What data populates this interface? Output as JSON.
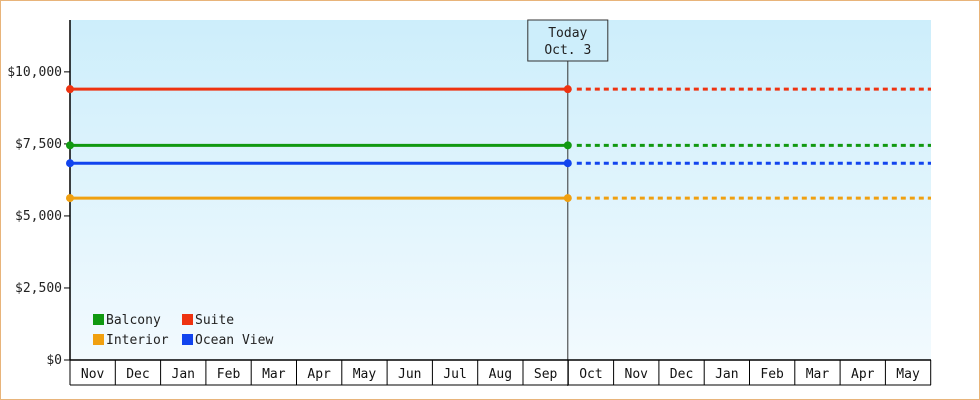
{
  "chart_data": {
    "type": "line",
    "y_ticks": [
      "$0",
      "$2,500",
      "$5,000",
      "$7,500",
      "$10,000"
    ],
    "y_tick_values": [
      0,
      2500,
      5000,
      7500,
      10000
    ],
    "ylim": [
      0,
      11800
    ],
    "months": [
      "Nov",
      "Dec",
      "Jan",
      "Feb",
      "Mar",
      "Apr",
      "May",
      "Jun",
      "Jul",
      "Aug",
      "Sep",
      "Oct",
      "Nov",
      "Dec",
      "Jan",
      "Feb",
      "Mar",
      "Apr",
      "May"
    ],
    "today_index": 11,
    "today_label": "Today",
    "today_date": "Oct. 3",
    "series": [
      {
        "name": "Suite",
        "color": "#ee3311",
        "value": 9400
      },
      {
        "name": "Balcony",
        "color": "#119911",
        "value": 7450
      },
      {
        "name": "Ocean View",
        "color": "#1144ee",
        "value": 6830
      },
      {
        "name": "Interior",
        "color": "#f0a010",
        "value": 5620
      }
    ],
    "legend": [
      {
        "name": "Balcony",
        "color": "#119911"
      },
      {
        "name": "Suite",
        "color": "#ee3311"
      },
      {
        "name": "Interior",
        "color": "#f0a010"
      },
      {
        "name": "Ocean View",
        "color": "#1144ee"
      }
    ],
    "legend_position": "bottom-left",
    "background_gradient": [
      "#cdeefb",
      "#f2fafe"
    ]
  }
}
